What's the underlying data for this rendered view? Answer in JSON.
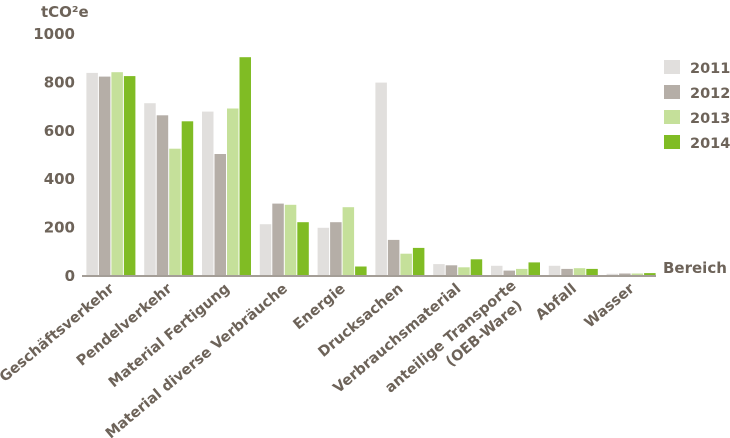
{
  "chart_data": {
    "type": "bar",
    "title": "",
    "ylabel": "tCO²e",
    "xlabel": "Bereich",
    "ylim": [
      0,
      1000
    ],
    "yticks": [
      0,
      200,
      400,
      600,
      800,
      1000
    ],
    "grid": false,
    "legend_position": "right",
    "categories": [
      "Geschäftsverkehr",
      "Pendelverkehr",
      "Material Fertigung",
      "Material diverse Verbräuche",
      "Energie",
      "Drucksachen",
      "Verbrauchsmaterial",
      "anteilige Transporte\n(OEB-Ware)",
      "Abfall",
      "Wasser"
    ],
    "series": [
      {
        "name": "2011",
        "color": "#e1dfdd",
        "values": [
          835,
          710,
          675,
          210,
          195,
          795,
          45,
          38,
          38,
          5
        ]
      },
      {
        "name": "2012",
        "color": "#b5aea7",
        "values": [
          820,
          660,
          500,
          295,
          218,
          145,
          40,
          18,
          25,
          6
        ]
      },
      {
        "name": "2013",
        "color": "#c5e09a",
        "values": [
          838,
          522,
          688,
          290,
          280,
          88,
          32,
          25,
          28,
          6
        ]
      },
      {
        "name": "2014",
        "color": "#80bc24",
        "values": [
          822,
          635,
          900,
          218,
          35,
          112,
          65,
          52,
          25,
          8
        ]
      }
    ]
  },
  "colors": {
    "text": "#6d6359",
    "axis": "#6d6359"
  }
}
